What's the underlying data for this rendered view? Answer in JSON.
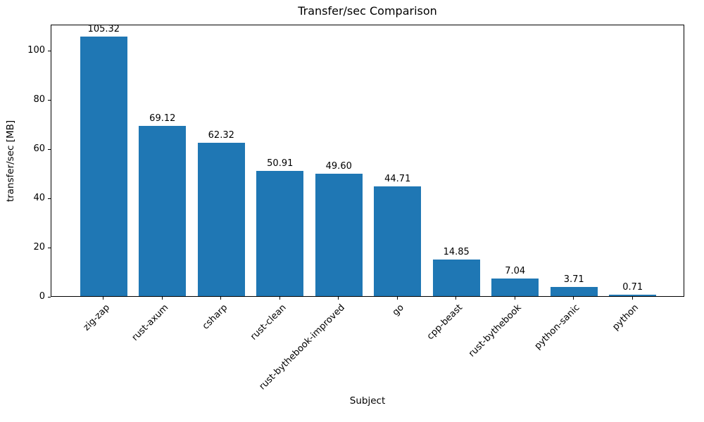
{
  "chart_data": {
    "type": "bar",
    "title": "Transfer/sec Comparison",
    "xlabel": "Subject",
    "ylabel": "transfer/sec [MB]",
    "categories": [
      "zig-zap",
      "rust-axum",
      "csharp",
      "rust-clean",
      "rust-bythebook-improved",
      "go",
      "cpp-beast",
      "rust-bythebook",
      "python-sanic",
      "python"
    ],
    "values": [
      105.32,
      69.12,
      62.32,
      50.91,
      49.6,
      44.71,
      14.85,
      7.04,
      3.71,
      0.71
    ],
    "value_labels": [
      "105.32",
      "69.12",
      "62.32",
      "50.91",
      "49.60",
      "44.71",
      "14.85",
      "7.04",
      "3.71",
      "0.71"
    ],
    "yticks": [
      0,
      20,
      40,
      60,
      80,
      100
    ],
    "ylim": [
      0,
      110.6
    ],
    "bar_color": "#1f77b4",
    "grid": false,
    "legend_position": "none"
  }
}
